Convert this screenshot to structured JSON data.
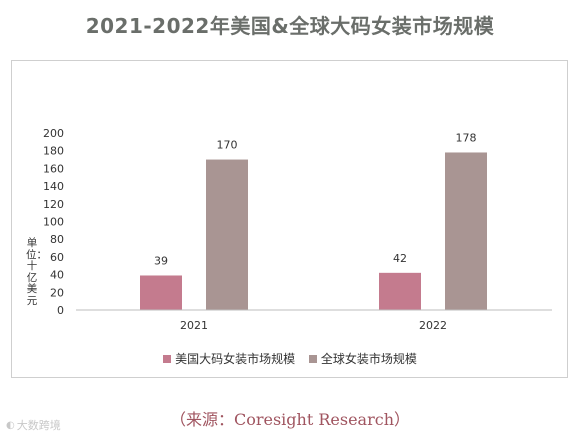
{
  "title": "2021-2022年美国&全球大码女装市场规模",
  "source": "（来源：Coresight Research）",
  "watermark": "大数跨境",
  "watermark_icon": "ds-logo-icon",
  "chart_data": {
    "type": "bar",
    "categories": [
      "2021",
      "2022"
    ],
    "series": [
      {
        "name": "美国大码女装市场规模",
        "values": [
          39,
          42
        ],
        "color": "#c47b8e"
      },
      {
        "name": "全球女装市场规模",
        "values": [
          170,
          178
        ],
        "color": "#a99593"
      }
    ],
    "ylim": [
      0,
      200
    ],
    "yticks": [
      0,
      20,
      40,
      60,
      80,
      100,
      120,
      140,
      160,
      180,
      200
    ],
    "ylabel": "单位：十亿美元",
    "grid": false,
    "legend_position": "bottom"
  }
}
